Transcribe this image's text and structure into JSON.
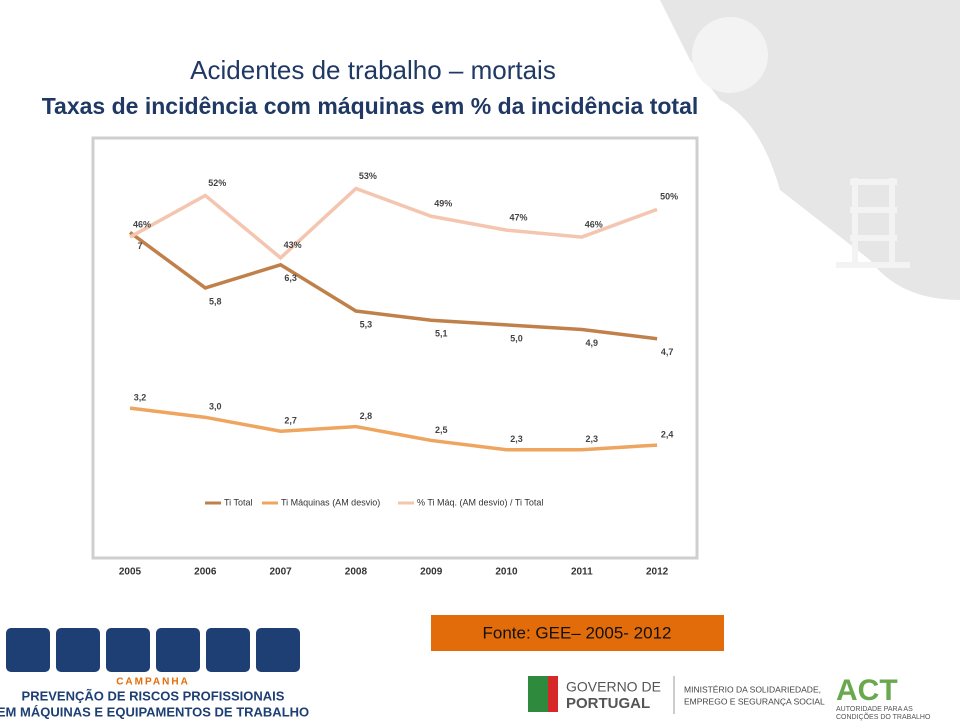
{
  "chart_data": {
    "type": "line",
    "title": "Acidentes de trabalho – mortais",
    "subtitle": "Taxas de incidência com máquinas em % da incidência total",
    "categories": [
      "2005",
      "2006",
      "2007",
      "2008",
      "2009",
      "2010",
      "2011",
      "2012"
    ],
    "series": [
      {
        "name": "Ti Total",
        "color": "#c0804a",
        "values": [
          7,
          5.8,
          6.3,
          5.3,
          5.1,
          5.0,
          4.9,
          4.7
        ],
        "value_labels": [
          "7",
          "5,8",
          "6,3",
          "5,3",
          "5,1",
          "5,0",
          "4,9",
          "4,7"
        ]
      },
      {
        "name": "Ti Máquinas (AM desvio)",
        "color": "#eea55f",
        "values": [
          3.2,
          3.0,
          2.7,
          2.8,
          2.5,
          2.3,
          2.3,
          2.4
        ],
        "value_labels": [
          "3,2",
          "3,0",
          "2,7",
          "2,8",
          "2,5",
          "2,3",
          "2,3",
          "2,4"
        ]
      },
      {
        "name": "% Ti Máq. (AM desvio) / Ti Total",
        "color": "#f4c6b0",
        "axis": "y2",
        "values": [
          46,
          52,
          43,
          53,
          49,
          47,
          46,
          50
        ],
        "value_labels": [
          "46%",
          "52%",
          "43%",
          "53%",
          "49%",
          "47%",
          "46%",
          "50%"
        ]
      }
    ],
    "ylim": [
      0,
      9
    ],
    "y2lim": [
      0,
      60
    ],
    "grid": false,
    "legend": "bottom"
  },
  "source": "Fonte: GEE– 2005- 2012",
  "footer": {
    "campaign": "CAMPANHA",
    "line1": "PREVENÇÃO DE RISCOS PROFISSIONAIS",
    "line2": "EM MÁQUINAS E EQUIPAMENTOS DE TRABALHO",
    "gov1": "GOVERNO DE",
    "gov2": "PORTUGAL",
    "ministry1": "MINISTÉRIO DA SOLIDARIEDADE,",
    "ministry2": "EMPREGO E SEGURANÇA SOCIAL",
    "act": "ACT",
    "act1": "AUTORIDADE PARA AS",
    "act2": "CONDIÇÕES DO TRABALHO"
  }
}
